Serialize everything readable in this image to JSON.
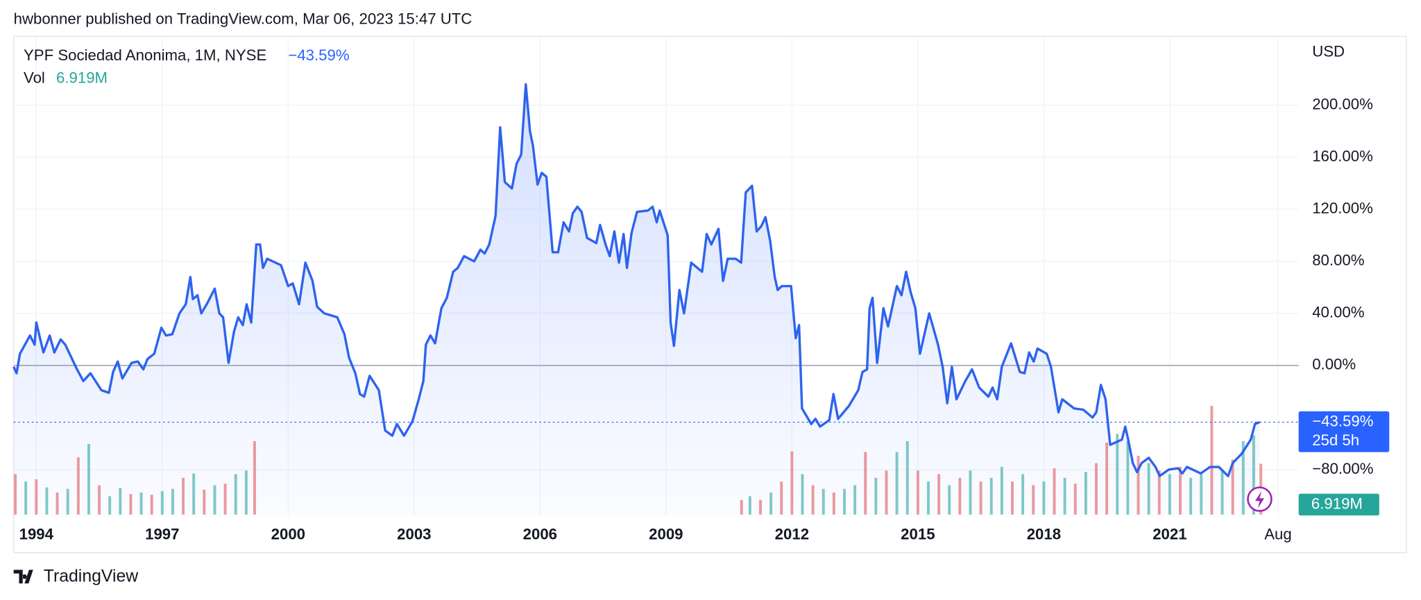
{
  "header": "hwbonner published on TradingView.com, Mar 06, 2023 15:47 UTC",
  "footer": "TradingView",
  "chart_data": {
    "type": "line",
    "title": "YPF Sociedad Anonima, 1M, NYSE",
    "change_label": "−43.59%",
    "currency": "USD",
    "countdown": "25d 5h",
    "color": "#2e63ee",
    "grid": true,
    "xlim": [
      1993.46,
      2024.07
    ],
    "ylim": [
      -116,
      253
    ],
    "xticks": [
      1994,
      1997,
      2000,
      2003,
      2006,
      2009,
      2012,
      2015,
      2018,
      2021,
      {
        "value": 2023.58,
        "label": "Aug"
      }
    ],
    "yticks": [
      {
        "value": 200,
        "label": "200.00%"
      },
      {
        "value": 160,
        "label": "160.00%"
      },
      {
        "value": 120,
        "label": "120.00%"
      },
      {
        "value": 80,
        "label": "80.00%"
      },
      {
        "value": 40,
        "label": "40.00%"
      },
      {
        "value": 0,
        "label": "0.00%"
      },
      {
        "value": -80,
        "label": "−80.00%"
      }
    ],
    "x": [
      1993.46,
      1993.53,
      1993.61,
      1993.85,
      1993.96,
      1994.0,
      1994.17,
      1994.32,
      1994.43,
      1994.58,
      1994.69,
      1994.97,
      1995.12,
      1995.29,
      1995.55,
      1995.73,
      1995.83,
      1995.94,
      1996.05,
      1996.27,
      1996.42,
      1996.55,
      1996.65,
      1996.81,
      1996.98,
      1997.09,
      1997.24,
      1997.41,
      1997.56,
      1997.67,
      1997.73,
      1997.84,
      1997.93,
      1998.06,
      1998.25,
      1998.36,
      1998.45,
      1998.58,
      1998.71,
      1998.81,
      1998.92,
      1999.01,
      1999.12,
      1999.24,
      1999.33,
      1999.4,
      1999.5,
      1999.83,
      2000.0,
      2000.11,
      2000.26,
      2000.41,
      2000.58,
      2000.69,
      2000.86,
      2001.17,
      2001.34,
      2001.45,
      2001.6,
      2001.71,
      2001.81,
      2001.94,
      2002.16,
      2002.31,
      2002.48,
      2002.59,
      2002.76,
      2002.96,
      2003.11,
      2003.22,
      2003.28,
      2003.39,
      2003.5,
      2003.65,
      2003.78,
      2003.93,
      2004.04,
      2004.19,
      2004.43,
      2004.58,
      2004.68,
      2004.79,
      2004.94,
      2005.05,
      2005.16,
      2005.33,
      2005.44,
      2005.55,
      2005.66,
      2005.76,
      2005.83,
      2005.94,
      2006.04,
      2006.15,
      2006.3,
      2006.43,
      2006.56,
      2006.69,
      2006.78,
      2006.89,
      2006.99,
      2007.12,
      2007.34,
      2007.43,
      2007.56,
      2007.66,
      2007.77,
      2007.88,
      2007.99,
      2008.07,
      2008.18,
      2008.31,
      2008.57,
      2008.68,
      2008.78,
      2008.85,
      2009.04,
      2009.11,
      2009.19,
      2009.32,
      2009.43,
      2009.54,
      2009.6,
      2009.86,
      2009.97,
      2010.08,
      2010.25,
      2010.36,
      2010.47,
      2010.66,
      2010.79,
      2010.9,
      2011.05,
      2011.16,
      2011.27,
      2011.37,
      2011.48,
      2011.59,
      2011.66,
      2011.76,
      2011.98,
      2012.09,
      2012.17,
      2012.24,
      2012.46,
      2012.56,
      2012.67,
      2012.89,
      2012.99,
      2013.1,
      2013.36,
      2013.58,
      2013.68,
      2013.79,
      2013.85,
      2013.92,
      2014.03,
      2014.18,
      2014.29,
      2014.5,
      2014.61,
      2014.72,
      2014.83,
      2014.94,
      2015.05,
      2015.27,
      2015.48,
      2015.59,
      2015.7,
      2015.81,
      2015.92,
      2016.13,
      2016.29,
      2016.46,
      2016.68,
      2016.78,
      2016.89,
      2017.0,
      2017.22,
      2017.43,
      2017.54,
      2017.65,
      2017.76,
      2017.85,
      2018.07,
      2018.17,
      2018.35,
      2018.44,
      2018.72,
      2018.94,
      2019.16,
      2019.25,
      2019.36,
      2019.47,
      2019.58,
      2019.86,
      2019.94,
      2020.01,
      2020.12,
      2020.22,
      2020.33,
      2020.5,
      2020.66,
      2020.76,
      2020.98,
      2021.2,
      2021.3,
      2021.41,
      2021.74,
      2021.96,
      2022.17,
      2022.39,
      2022.5,
      2022.71,
      2022.93,
      2023.03,
      2023.14
    ],
    "values": [
      -1,
      -6,
      9,
      23,
      16,
      33,
      10,
      23,
      10,
      20,
      16,
      -3,
      -12,
      -6,
      -19,
      -21,
      -5,
      3,
      -10,
      2,
      3,
      -3,
      5,
      9,
      29,
      23,
      24,
      40,
      47,
      68,
      51,
      54,
      40,
      47,
      59,
      40,
      37,
      2,
      26,
      37,
      31,
      47,
      33,
      93,
      93,
      75,
      82,
      77,
      61,
      63,
      47,
      79,
      65,
      45,
      40,
      37,
      24,
      6,
      -6,
      -22,
      -24,
      -8,
      -19,
      -50,
      -54,
      -45,
      -54,
      -43,
      -26,
      -12,
      16,
      23,
      17,
      44,
      52,
      72,
      75,
      84,
      80,
      89,
      86,
      93,
      115,
      183,
      141,
      136,
      155,
      162,
      216,
      180,
      169,
      139,
      148,
      145,
      87,
      87,
      110,
      103,
      117,
      122,
      118,
      98,
      94,
      108,
      93,
      84,
      103,
      79,
      101,
      75,
      102,
      118,
      119,
      122,
      110,
      119,
      100,
      33,
      15,
      58,
      40,
      65,
      79,
      72,
      101,
      93,
      105,
      65,
      82,
      82,
      79,
      133,
      138,
      103,
      107,
      114,
      96,
      68,
      58,
      61,
      61,
      21,
      31,
      -33,
      -45,
      -41,
      -47,
      -42,
      -22,
      -41,
      -31,
      -19,
      -5,
      -3,
      44,
      52,
      2,
      44,
      30,
      61,
      54,
      72,
      56,
      44,
      9,
      40,
      16,
      -1,
      -29,
      -1,
      -26,
      -12,
      -3,
      -17,
      -24,
      -17,
      -26,
      -1,
      17,
      -5,
      -6,
      10,
      3,
      13,
      9,
      -1,
      -36,
      -26,
      -33,
      -34,
      -40,
      -36,
      -15,
      -26,
      -61,
      -57,
      -47,
      -57,
      -75,
      -82,
      -75,
      -71,
      -78,
      -85,
      -80,
      -79,
      -83,
      -78,
      -83,
      -78,
      -78,
      -85,
      -75,
      -68,
      -57,
      -45,
      -43.59
    ],
    "volume": {
      "label": "Vol",
      "value_label": "6.919M",
      "x": [
        1993.5,
        1993.75,
        1994.0,
        1994.25,
        1994.5,
        1994.75,
        1995.0,
        1995.25,
        1995.5,
        1995.75,
        1996.0,
        1996.25,
        1996.5,
        1996.75,
        1997.0,
        1997.25,
        1997.5,
        1997.75,
        1998.0,
        1998.25,
        1998.5,
        1998.75,
        1999.0,
        1999.2,
        2010.8,
        2011.0,
        2011.25,
        2011.5,
        2011.75,
        2012.0,
        2012.25,
        2012.5,
        2012.75,
        2013.0,
        2013.25,
        2013.5,
        2013.75,
        2014.0,
        2014.25,
        2014.5,
        2014.75,
        2015.0,
        2015.25,
        2015.5,
        2015.75,
        2016.0,
        2016.25,
        2016.5,
        2016.75,
        2017.0,
        2017.25,
        2017.5,
        2017.75,
        2018.0,
        2018.25,
        2018.5,
        2018.75,
        2019.0,
        2019.25,
        2019.5,
        2019.75,
        2020.0,
        2020.25,
        2020.5,
        2020.75,
        2021.0,
        2021.25,
        2021.5,
        2021.75,
        2022.0,
        2022.25,
        2022.5,
        2022.75,
        2023.0,
        2023.17
      ],
      "values": [
        5.5,
        4.5,
        4.8,
        3.7,
        3.0,
        3.5,
        7.8,
        9.6,
        4.0,
        2.5,
        3.6,
        2.8,
        3.0,
        2.7,
        3.2,
        3.5,
        5.0,
        5.6,
        3.4,
        4.0,
        4.2,
        5.5,
        6.0,
        10.0,
        2.0,
        2.5,
        2.0,
        3.0,
        4.5,
        8.6,
        5.5,
        4.0,
        3.5,
        3.0,
        3.5,
        4.0,
        8.5,
        5.0,
        6.0,
        8.5,
        10.0,
        6.0,
        4.5,
        5.5,
        4.0,
        5.0,
        6.0,
        4.5,
        5.0,
        6.5,
        4.5,
        5.5,
        4.0,
        4.5,
        6.3,
        5.0,
        4.2,
        5.8,
        7.0,
        9.8,
        11.0,
        10.0,
        8.0,
        7.0,
        6.0,
        5.5,
        6.5,
        5.0,
        5.5,
        14.8,
        6.0,
        7.5,
        10.0,
        10.8,
        6.919
      ],
      "colors": [
        "#ef9a9a",
        "#80cbc4",
        "#ef9a9a",
        "#80cbc4",
        "#ef9a9a",
        "#80cbc4",
        "#ef9a9a",
        "#80cbc4",
        "#ef9a9a",
        "#80cbc4",
        "#80cbc4",
        "#ef9a9a",
        "#80cbc4",
        "#ef9a9a",
        "#80cbc4",
        "#80cbc4",
        "#ef9a9a",
        "#80cbc4",
        "#ef9a9a",
        "#80cbc4",
        "#ef9a9a",
        "#80cbc4",
        "#80cbc4",
        "#ef9a9a",
        "#ef9a9a",
        "#80cbc4",
        "#ef9a9a",
        "#80cbc4",
        "#ef9a9a",
        "#ef9a9a",
        "#80cbc4",
        "#ef9a9a",
        "#80cbc4",
        "#ef9a9a",
        "#80cbc4",
        "#80cbc4",
        "#ef9a9a",
        "#80cbc4",
        "#ef9a9a",
        "#80cbc4",
        "#80cbc4",
        "#ef9a9a",
        "#80cbc4",
        "#ef9a9a",
        "#80cbc4",
        "#ef9a9a",
        "#80cbc4",
        "#ef9a9a",
        "#80cbc4",
        "#80cbc4",
        "#ef9a9a",
        "#80cbc4",
        "#ef9a9a",
        "#80cbc4",
        "#ef9a9a",
        "#80cbc4",
        "#ef9a9a",
        "#80cbc4",
        "#ef9a9a",
        "#ef9a9a",
        "#80cbc4",
        "#80cbc4",
        "#ef9a9a",
        "#80cbc4",
        "#ef9a9a",
        "#80cbc4",
        "#ef9a9a",
        "#80cbc4",
        "#80cbc4",
        "#ef9a9a",
        "#80cbc4",
        "#ef9a9a",
        "#80cbc4",
        "#80cbc4",
        "#ef9a9a"
      ],
      "color": "#26a69a"
    }
  }
}
